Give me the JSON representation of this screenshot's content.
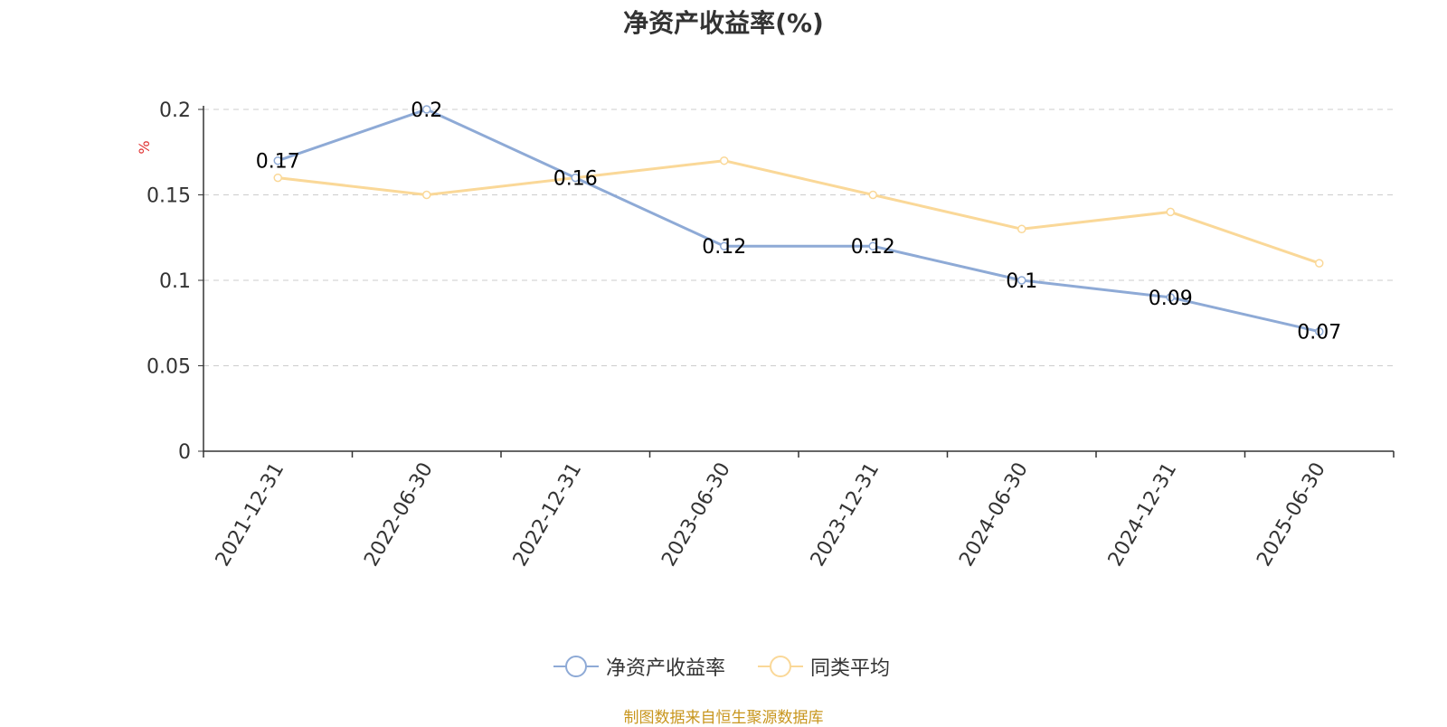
{
  "chart_data": {
    "type": "line",
    "title": "净资产收益率(%)",
    "ylabel": "%",
    "ylim": [
      0,
      0.2
    ],
    "yticks": [
      "0",
      "0.05",
      "0.1",
      "0.15",
      "0.2"
    ],
    "categories": [
      "2021-12-31",
      "2022-06-30",
      "2022-12-31",
      "2023-06-30",
      "2023-12-31",
      "2024-06-30",
      "2024-12-31",
      "2025-06-30"
    ],
    "grid": true,
    "legend_position": "bottom-center",
    "series": [
      {
        "name": "净资产收益率",
        "values": [
          0.17,
          0.2,
          0.16,
          0.12,
          0.12,
          0.1,
          0.09,
          0.07
        ],
        "labels": [
          "0.17",
          "0.2",
          "0.16",
          "0.12",
          "0.12",
          "0.1",
          "0.09",
          "0.07"
        ],
        "color": "#8eaad6"
      },
      {
        "name": "同类平均",
        "values": [
          0.16,
          0.15,
          0.16,
          0.17,
          0.15,
          0.13,
          0.14,
          0.11
        ],
        "color": "#fad898"
      }
    ]
  },
  "source": "制图数据来自恒生聚源数据库",
  "colors": {
    "axis": "#333333",
    "grid": "#cccccc",
    "ylabel": "#e03030"
  }
}
